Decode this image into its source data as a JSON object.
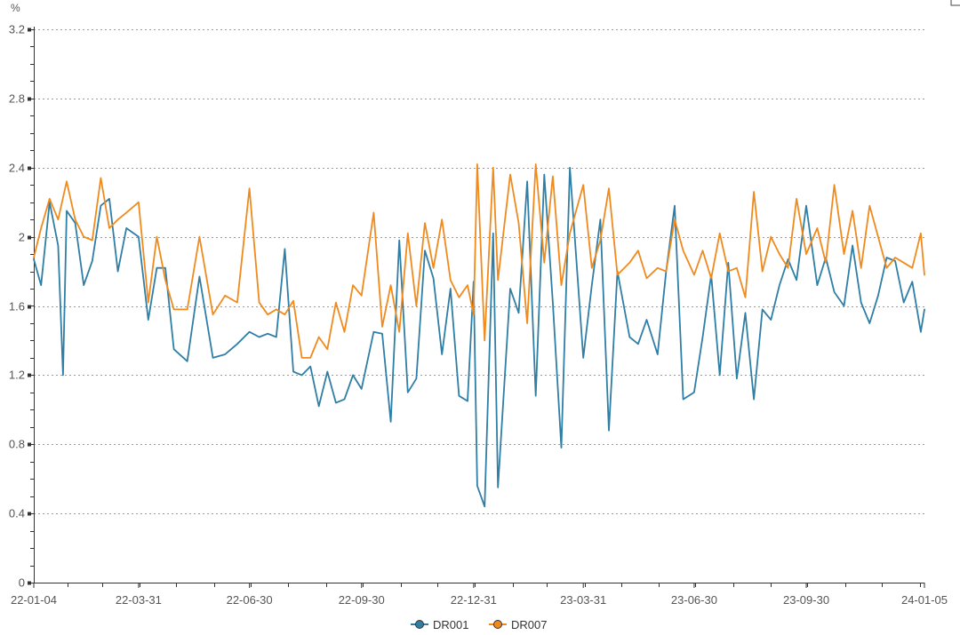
{
  "chart_data": {
    "type": "line",
    "unit_label": "%",
    "ylim": [
      0,
      3.2
    ],
    "y_ticks": [
      "0",
      "0.4",
      "0.8",
      "1.2",
      "1.6",
      "2",
      "2.4",
      "2.8",
      "3.2"
    ],
    "x_tick_labels": [
      "22-01-04",
      "22-03-31",
      "22-06-30",
      "22-09-30",
      "22-12-31",
      "23-03-31",
      "23-06-30",
      "23-09-30",
      "24-01-05"
    ],
    "x_tick_dates": [
      "2022-01-04",
      "2022-03-31",
      "2022-06-30",
      "2022-09-30",
      "2022-12-31",
      "2023-03-31",
      "2023-06-30",
      "2023-09-30",
      "2024-01-05"
    ],
    "grid": true,
    "legend_position": "bottom-center",
    "series": [
      {
        "name": "DR001",
        "color": "#2e7ea6",
        "x": [
          "2022-01-04",
          "2022-01-10",
          "2022-01-17",
          "2022-01-24",
          "2022-01-28",
          "2022-01-31",
          "2022-02-07",
          "2022-02-14",
          "2022-02-21",
          "2022-02-28",
          "2022-03-07",
          "2022-03-14",
          "2022-03-21",
          "2022-03-31",
          "2022-04-08",
          "2022-04-15",
          "2022-04-22",
          "2022-04-29",
          "2022-05-10",
          "2022-05-20",
          "2022-05-31",
          "2022-06-10",
          "2022-06-20",
          "2022-06-30",
          "2022-07-08",
          "2022-07-15",
          "2022-07-22",
          "2022-07-29",
          "2022-08-05",
          "2022-08-12",
          "2022-08-19",
          "2022-08-26",
          "2022-09-02",
          "2022-09-09",
          "2022-09-16",
          "2022-09-23",
          "2022-09-30",
          "2022-10-10",
          "2022-10-17",
          "2022-10-24",
          "2022-10-31",
          "2022-11-07",
          "2022-11-14",
          "2022-11-21",
          "2022-11-28",
          "2022-12-05",
          "2022-12-12",
          "2022-12-19",
          "2022-12-26",
          "2022-12-31",
          "2023-01-03",
          "2023-01-09",
          "2023-01-16",
          "2023-01-20",
          "2023-01-30",
          "2023-02-06",
          "2023-02-13",
          "2023-02-20",
          "2023-02-27",
          "2023-03-06",
          "2023-03-13",
          "2023-03-20",
          "2023-03-31",
          "2023-04-07",
          "2023-04-14",
          "2023-04-21",
          "2023-04-28",
          "2023-05-08",
          "2023-05-15",
          "2023-05-22",
          "2023-05-31",
          "2023-06-07",
          "2023-06-14",
          "2023-06-21",
          "2023-06-30",
          "2023-07-07",
          "2023-07-14",
          "2023-07-21",
          "2023-07-28",
          "2023-08-04",
          "2023-08-11",
          "2023-08-18",
          "2023-08-25",
          "2023-09-01",
          "2023-09-08",
          "2023-09-15",
          "2023-09-22",
          "2023-09-30",
          "2023-10-09",
          "2023-10-16",
          "2023-10-23",
          "2023-10-31",
          "2023-11-07",
          "2023-11-14",
          "2023-11-21",
          "2023-11-28",
          "2023-12-05",
          "2023-12-12",
          "2023-12-19",
          "2023-12-26",
          "2024-01-02",
          "2024-01-05"
        ],
        "values": [
          1.87,
          1.72,
          2.2,
          1.95,
          1.2,
          2.15,
          2.08,
          1.72,
          1.86,
          2.18,
          2.22,
          1.8,
          2.05,
          2.0,
          1.52,
          1.82,
          1.82,
          1.35,
          1.28,
          1.77,
          1.3,
          1.32,
          1.38,
          1.45,
          1.42,
          1.44,
          1.42,
          1.93,
          1.22,
          1.2,
          1.25,
          1.02,
          1.22,
          1.04,
          1.06,
          1.2,
          1.12,
          1.45,
          1.44,
          0.93,
          1.98,
          1.1,
          1.18,
          1.92,
          1.76,
          1.32,
          1.7,
          1.08,
          1.05,
          1.74,
          0.56,
          0.44,
          2.02,
          0.55,
          1.7,
          1.56,
          2.32,
          1.08,
          2.36,
          1.62,
          0.78,
          2.4,
          1.3,
          1.72,
          2.1,
          0.88,
          1.8,
          1.42,
          1.38,
          1.52,
          1.32,
          1.8,
          2.18,
          1.06,
          1.1,
          1.42,
          1.78,
          1.2,
          1.85,
          1.18,
          1.56,
          1.06,
          1.58,
          1.52,
          1.72,
          1.87,
          1.75,
          2.18,
          1.72,
          1.88,
          1.68,
          1.6,
          1.95,
          1.62,
          1.5,
          1.66,
          1.88,
          1.86,
          1.62,
          1.74,
          1.45,
          1.58
        ]
      },
      {
        "name": "DR007",
        "color": "#f08a1d",
        "x": [
          "2022-01-04",
          "2022-01-10",
          "2022-01-17",
          "2022-01-24",
          "2022-01-31",
          "2022-02-07",
          "2022-02-14",
          "2022-02-21",
          "2022-02-28",
          "2022-03-07",
          "2022-03-14",
          "2022-03-21",
          "2022-03-31",
          "2022-04-08",
          "2022-04-15",
          "2022-04-22",
          "2022-04-29",
          "2022-05-10",
          "2022-05-20",
          "2022-05-31",
          "2022-06-10",
          "2022-06-20",
          "2022-06-30",
          "2022-07-08",
          "2022-07-15",
          "2022-07-22",
          "2022-07-29",
          "2022-08-05",
          "2022-08-12",
          "2022-08-19",
          "2022-08-26",
          "2022-09-02",
          "2022-09-09",
          "2022-09-16",
          "2022-09-23",
          "2022-09-30",
          "2022-10-10",
          "2022-10-17",
          "2022-10-24",
          "2022-10-31",
          "2022-11-07",
          "2022-11-14",
          "2022-11-21",
          "2022-11-28",
          "2022-12-05",
          "2022-12-12",
          "2022-12-19",
          "2022-12-26",
          "2022-12-31",
          "2023-01-03",
          "2023-01-09",
          "2023-01-16",
          "2023-01-20",
          "2023-01-30",
          "2023-02-06",
          "2023-02-13",
          "2023-02-20",
          "2023-02-27",
          "2023-03-06",
          "2023-03-13",
          "2023-03-20",
          "2023-03-31",
          "2023-04-07",
          "2023-04-14",
          "2023-04-21",
          "2023-04-28",
          "2023-05-08",
          "2023-05-15",
          "2023-05-22",
          "2023-05-31",
          "2023-06-07",
          "2023-06-14",
          "2023-06-21",
          "2023-06-30",
          "2023-07-07",
          "2023-07-14",
          "2023-07-21",
          "2023-07-28",
          "2023-08-04",
          "2023-08-11",
          "2023-08-18",
          "2023-08-25",
          "2023-09-01",
          "2023-09-08",
          "2023-09-15",
          "2023-09-22",
          "2023-09-30",
          "2023-10-09",
          "2023-10-16",
          "2023-10-23",
          "2023-10-31",
          "2023-11-07",
          "2023-11-14",
          "2023-11-21",
          "2023-11-28",
          "2023-12-05",
          "2023-12-12",
          "2023-12-19",
          "2023-12-26",
          "2024-01-02",
          "2024-01-05"
        ],
        "values": [
          1.88,
          2.05,
          2.22,
          2.1,
          2.32,
          2.1,
          2.0,
          1.98,
          2.34,
          2.05,
          2.1,
          2.14,
          2.2,
          1.62,
          2.0,
          1.75,
          1.58,
          1.58,
          2.0,
          1.55,
          1.66,
          1.62,
          2.28,
          1.62,
          1.55,
          1.58,
          1.55,
          1.63,
          1.3,
          1.3,
          1.42,
          1.35,
          1.62,
          1.45,
          1.72,
          1.66,
          2.14,
          1.48,
          1.72,
          1.45,
          2.02,
          1.6,
          2.08,
          1.82,
          2.1,
          1.75,
          1.65,
          1.72,
          1.55,
          2.42,
          1.4,
          2.4,
          1.75,
          2.36,
          2.08,
          1.5,
          2.42,
          1.85,
          2.35,
          1.72,
          2.02,
          2.3,
          1.82,
          1.98,
          2.28,
          1.78,
          1.85,
          1.92,
          1.76,
          1.82,
          1.8,
          2.1,
          1.92,
          1.78,
          1.92,
          1.76,
          2.02,
          1.8,
          1.82,
          1.65,
          2.26,
          1.8,
          2.0,
          1.9,
          1.82,
          2.22,
          1.9,
          2.05,
          1.85,
          2.3,
          1.9,
          2.15,
          1.82,
          2.18,
          2.0,
          1.82,
          1.88,
          1.85,
          1.82,
          2.02,
          1.78
        ]
      }
    ]
  }
}
